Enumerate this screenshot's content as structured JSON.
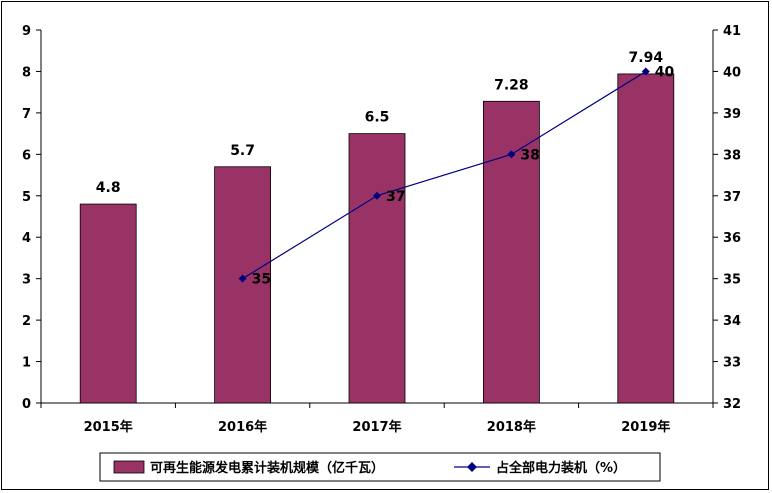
{
  "chart_data": {
    "type": "bar+line",
    "categories": [
      "2015年",
      "2016年",
      "2017年",
      "2018年",
      "2019年"
    ],
    "series": [
      {
        "name": "可再生能源发电累计装机规模（亿千瓦）",
        "type": "bar",
        "axis": "left",
        "color": "#993366",
        "values": [
          4.8,
          5.7,
          6.5,
          7.28,
          7.94
        ],
        "labels": [
          "4.8",
          "5.7",
          "6.5",
          "7.28",
          "7.94"
        ]
      },
      {
        "name": "占全部电力装机（%）",
        "type": "line",
        "axis": "right",
        "color": "#000080",
        "values": [
          null,
          35,
          37,
          38,
          40
        ],
        "labels": [
          "",
          "35",
          "37",
          "38",
          "40"
        ]
      }
    ],
    "y_left": {
      "ylim": [
        0,
        9
      ],
      "ticks": [
        "0",
        "1",
        "2",
        "3",
        "4",
        "5",
        "6",
        "7",
        "8",
        "9"
      ]
    },
    "y_right": {
      "ylim": [
        32,
        41
      ],
      "ticks": [
        "32",
        "33",
        "34",
        "35",
        "36",
        "37",
        "38",
        "39",
        "40",
        "41"
      ]
    },
    "legend_position": "bottom",
    "grid": false
  }
}
